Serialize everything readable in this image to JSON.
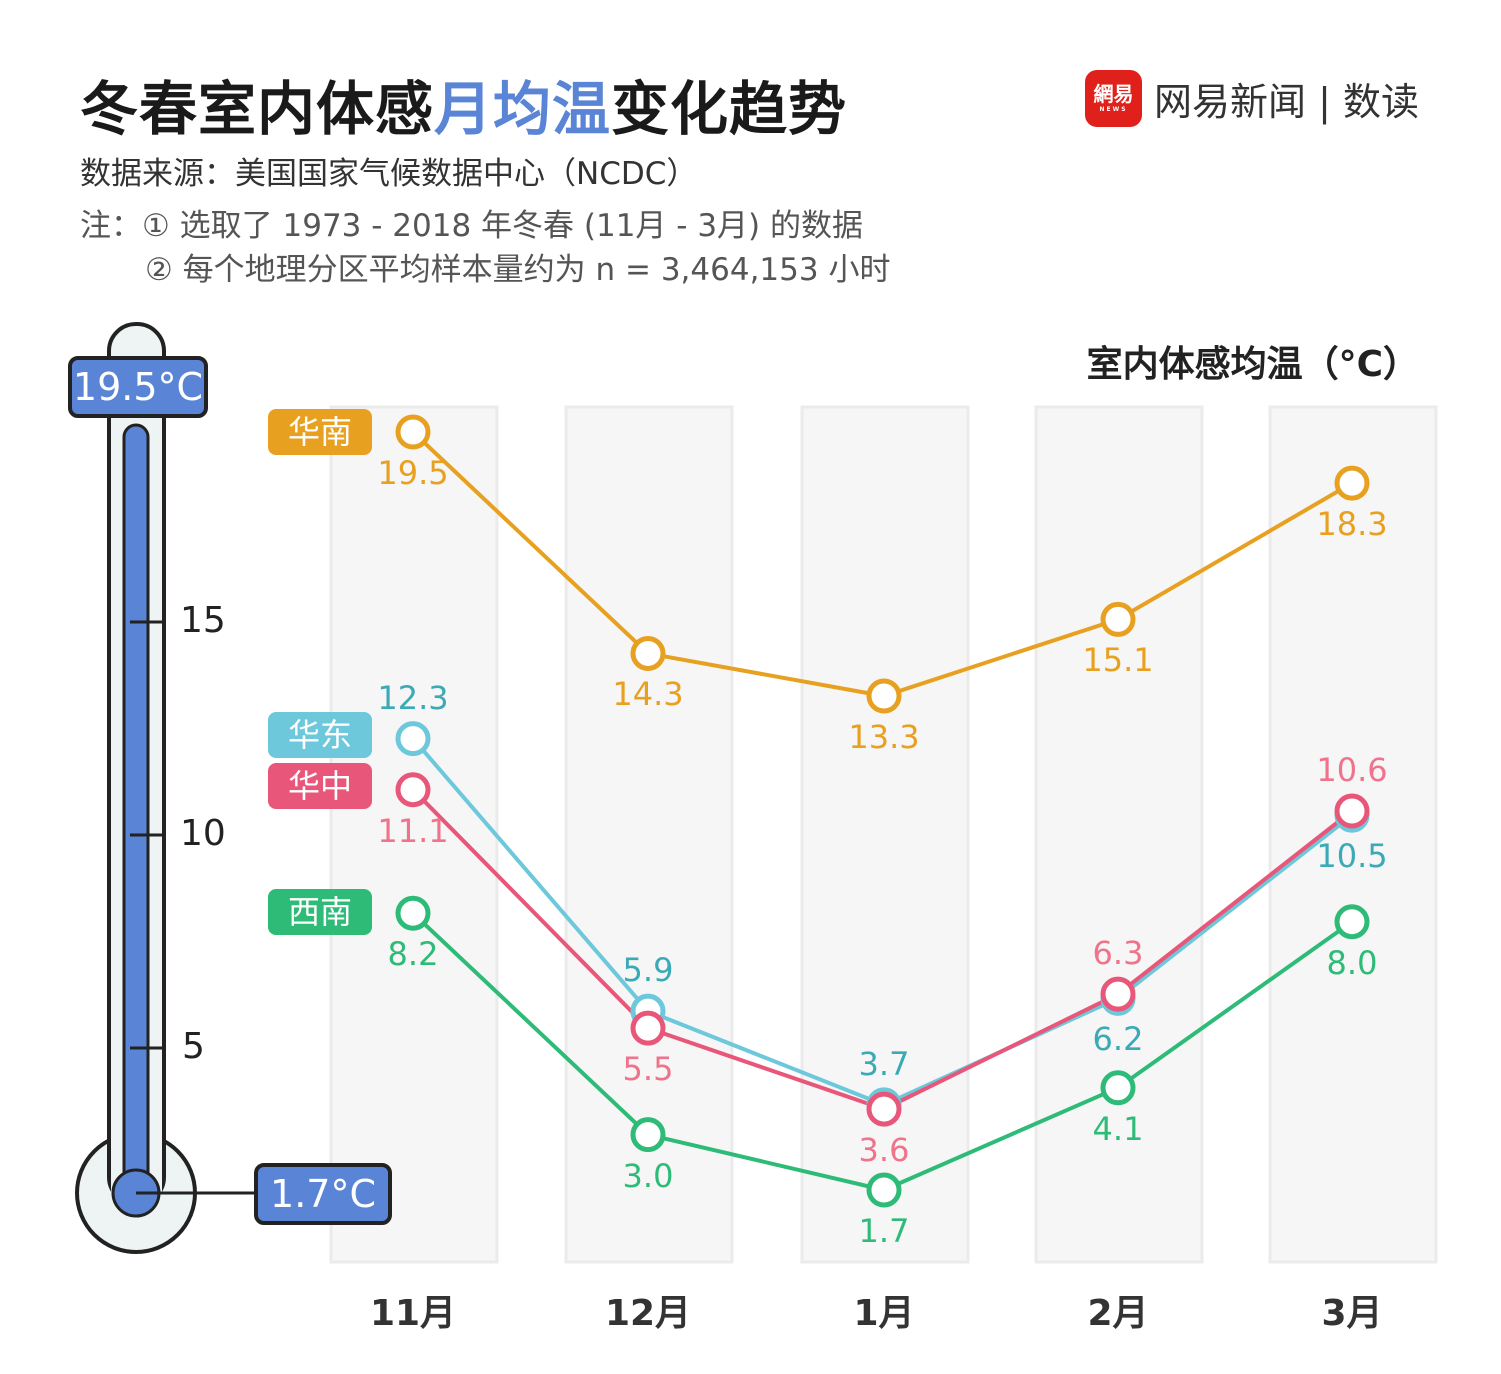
{
  "header": {
    "title_part1": "冬春室内体感",
    "title_highlight": "月均温",
    "title_part2": "变化趋势",
    "source": "数据来源：美国国家气候数据中心（NCDC）",
    "note_line1": "注：① 选取了 1973 - 2018 年冬春 (11月 - 3月) 的数据",
    "note_line2": "② 每个地理分区平均样本量约为 n = 3,464,153 小时"
  },
  "logo": {
    "badge": "網易",
    "badge_sub": "NEWS",
    "text": "网易新闻 | 数读"
  },
  "thermometer": {
    "max_label": "19.5°C",
    "min_label": "1.7°C",
    "ticks": [
      "15",
      "10",
      "5"
    ],
    "color": "#5A84D6"
  },
  "chart_data": {
    "type": "line",
    "ylabel": "室内体感均温（°C）",
    "categories": [
      "11月",
      "12月",
      "1月",
      "2月",
      "3月"
    ],
    "ylim": [
      1.7,
      19.5
    ],
    "grid": false,
    "series": [
      {
        "name": "华南",
        "color": "#E8A020",
        "label_color": "#E8A020",
        "values": [
          19.5,
          14.3,
          13.3,
          15.1,
          18.3
        ]
      },
      {
        "name": "华东",
        "color": "#6CC8DA",
        "label_color": "#3AAAB6",
        "values": [
          12.3,
          5.9,
          3.7,
          6.2,
          10.5
        ]
      },
      {
        "name": "华中",
        "color": "#E8577A",
        "label_color": "#F0738C",
        "values": [
          11.1,
          5.5,
          3.6,
          6.3,
          10.6
        ]
      },
      {
        "name": "西南",
        "color": "#2EBB78",
        "label_color": "#2EBB78",
        "values": [
          8.2,
          3.0,
          1.7,
          4.1,
          8.0
        ]
      }
    ]
  }
}
